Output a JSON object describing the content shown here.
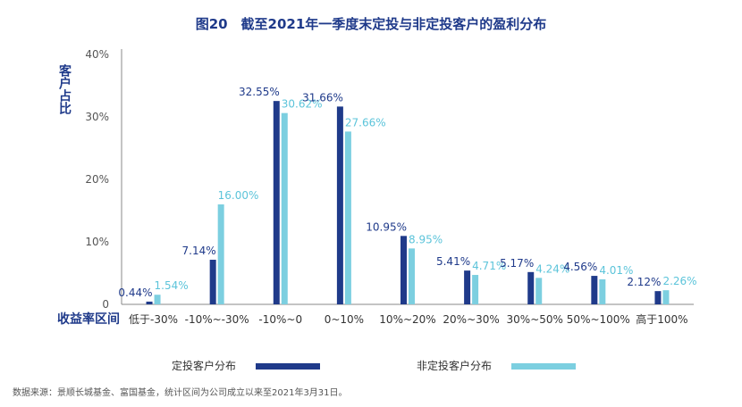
{
  "chart_data": {
    "type": "bar",
    "title": "图20　截至2021年一季度末定投与非定投客户的盈利分布",
    "ylabel": "客户占比",
    "xlabel": "收益率区间",
    "ylim": [
      0,
      40
    ],
    "yticks": [
      "0",
      "10%",
      "20%",
      "30%",
      "40%"
    ],
    "categories": [
      "低于-30%",
      "-10%~-30%",
      "-10%~0",
      "0~10%",
      "10%~20%",
      "20%~30%",
      "30%~50%",
      "50%~100%",
      "高于100%"
    ],
    "series": [
      {
        "name": "定投客户分布",
        "color": "#1f3a8a",
        "values": [
          0.44,
          7.14,
          32.55,
          31.66,
          10.95,
          5.41,
          5.17,
          4.56,
          2.12
        ],
        "labels": [
          "0.44%",
          "7.14%",
          "32.55%",
          "31.66%",
          "10.95%",
          "5.41%",
          "5.17%",
          "4.56%",
          "2.12%"
        ]
      },
      {
        "name": "非定投客户分布",
        "color": "#7ccfe0",
        "values": [
          1.54,
          16.0,
          30.62,
          27.66,
          8.95,
          4.71,
          4.24,
          4.01,
          2.26
        ],
        "labels": [
          "1.54%",
          "16.00%",
          "30.62%",
          "27.66%",
          "8.95%",
          "4.71%",
          "4.24%",
          "4.01%",
          "2.26%"
        ]
      }
    ],
    "legend_position": "bottom",
    "grid": false
  },
  "source_note": "数据来源：景顺长城基金、富国基金，统计区间为公司成立以来至2021年3月31日。"
}
